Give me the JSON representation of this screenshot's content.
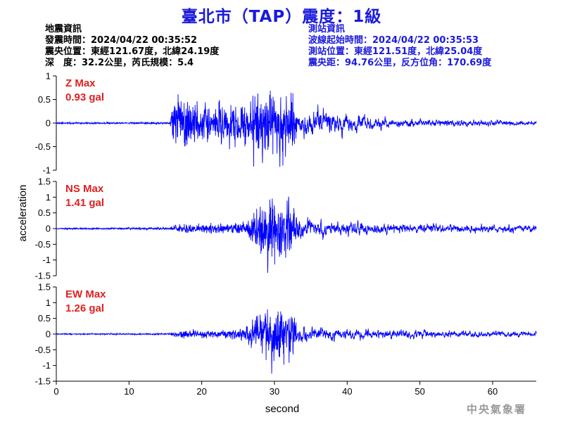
{
  "header": {
    "title": "臺北市（TAP）震度：1級",
    "event_info": [
      "地震資訊",
      "發震時間：2024/04/22 00:35:52",
      "震央位置：東經121.67度，北緯24.19度",
      "深　度：32.2公里，芮氏規模：5.4"
    ],
    "station_info": [
      "測站資訊",
      "波線起始時間：2024/04/22 00:35:53",
      "測站位置：東經121.51度，北緯25.04度",
      "震央距：94.76公里，反方位角：170.69度"
    ]
  },
  "footer": {
    "agency": "中央氣象署"
  },
  "colors": {
    "trace": "#0000ff",
    "max_label": "#e02020",
    "title": "#1a1adc",
    "station_info": "#1a1adc"
  },
  "chart_data": [
    {
      "type": "line",
      "panel": "Z",
      "label_line1": "Z Max",
      "label_line2": "0.93 gal",
      "max_gal": 0.93,
      "ylim": [
        -1,
        1
      ],
      "yticks": [
        "1",
        "0.5",
        "0",
        "-0.5",
        "-1"
      ],
      "ytick_values": [
        1,
        0.5,
        0,
        -0.5,
        -1
      ],
      "xlim": [
        0,
        66
      ],
      "envelope": {
        "x": [
          0,
          15.5,
          16.5,
          18,
          22,
          26,
          30,
          32,
          36,
          40,
          45,
          50,
          55,
          60,
          66
        ],
        "amp": [
          0.012,
          0.015,
          0.45,
          0.42,
          0.33,
          0.35,
          0.55,
          0.5,
          0.35,
          0.25,
          0.14,
          0.09,
          0.08,
          0.07,
          0.06
        ]
      }
    },
    {
      "type": "line",
      "panel": "NS",
      "label_line1": "NS Max",
      "label_line2": "1.41 gal",
      "max_gal": 1.41,
      "ylim": [
        -1.5,
        1.5
      ],
      "yticks": [
        "1.5",
        "1",
        "0.5",
        "0",
        "-0.5",
        "-1",
        "-1.5"
      ],
      "ytick_values": [
        1.5,
        1,
        0.5,
        0,
        -0.5,
        -1,
        -1.5
      ],
      "xlim": [
        0,
        66
      ],
      "envelope": {
        "x": [
          0,
          15.5,
          17,
          22,
          26,
          27.5,
          29,
          31,
          33,
          35,
          38,
          42,
          48,
          55,
          66
        ],
        "amp": [
          0.02,
          0.03,
          0.12,
          0.12,
          0.2,
          0.55,
          1.05,
          0.95,
          0.6,
          0.4,
          0.35,
          0.3,
          0.24,
          0.2,
          0.15
        ]
      }
    },
    {
      "type": "line",
      "panel": "EW",
      "label_line1": "EW Max",
      "label_line2": "1.26 gal",
      "max_gal": 1.26,
      "ylim": [
        -1.5,
        1.5
      ],
      "yticks": [
        "1.5",
        "1",
        "0.5",
        "0",
        "-0.5",
        "-1",
        "-1.5"
      ],
      "ytick_values": [
        1.5,
        1,
        0.5,
        0,
        -0.5,
        -1,
        -1.5
      ],
      "xlim": [
        0,
        66
      ],
      "envelope": {
        "x": [
          0,
          15.5,
          17,
          22,
          26,
          27.5,
          29,
          31,
          33,
          35,
          38,
          42,
          48,
          55,
          66
        ],
        "amp": [
          0.015,
          0.02,
          0.1,
          0.1,
          0.15,
          0.5,
          0.9,
          0.8,
          0.5,
          0.35,
          0.25,
          0.22,
          0.2,
          0.15,
          0.12
        ]
      }
    }
  ],
  "x_axis": {
    "label": "second",
    "ticks": [
      "0",
      "10",
      "20",
      "30",
      "40",
      "50",
      "60"
    ],
    "tick_values": [
      0,
      10,
      20,
      30,
      40,
      50,
      60
    ]
  },
  "y_axis": {
    "label": "acceleration"
  }
}
